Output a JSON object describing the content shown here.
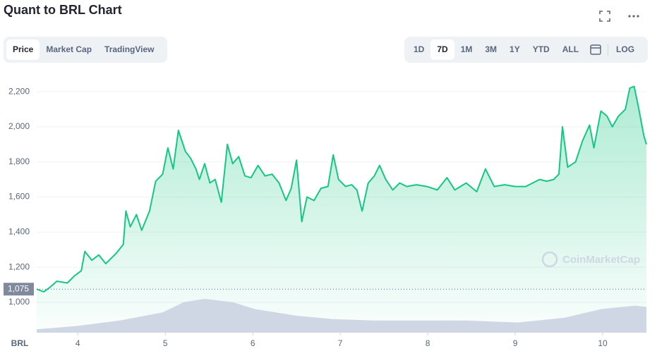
{
  "header": {
    "title": "Quant to BRL Chart"
  },
  "tabs": [
    "Price",
    "Market Cap",
    "TradingView"
  ],
  "ranges": [
    "1D",
    "7D",
    "1M",
    "3M",
    "1Y",
    "YTD",
    "ALL"
  ],
  "log": "LOG",
  "watermark": "CoinMarketCap",
  "chart_data": {
    "type": "line",
    "xlabel": "BRL",
    "xlim": [
      3.53,
      10.5
    ],
    "xticks": [
      4,
      5,
      6,
      7,
      8,
      9,
      10
    ],
    "ylim": [
      827,
      2369
    ],
    "yticks": [
      {
        "value": 1000,
        "label": "1,000"
      },
      {
        "value": 1200,
        "label": "1,200"
      },
      {
        "value": 1400,
        "label": "1,400"
      },
      {
        "value": 1600,
        "label": "1,600"
      },
      {
        "value": 1800,
        "label": "1,800"
      },
      {
        "value": 2000,
        "label": "2,000"
      },
      {
        "value": 2200,
        "label": "2,200"
      }
    ],
    "y2lim": [
      0,
      400
    ],
    "grid": true,
    "reference": {
      "value": 1075,
      "label": "1,075"
    },
    "series": [
      {
        "color": "#16c784",
        "x": [
          3.53,
          3.61,
          3.68,
          3.76,
          3.88,
          3.96,
          4.04,
          4.08,
          4.16,
          4.24,
          4.32,
          4.44,
          4.52,
          4.55,
          4.6,
          4.67,
          4.73,
          4.82,
          4.89,
          4.97,
          5.03,
          5.09,
          5.15,
          5.23,
          5.29,
          5.35,
          5.39,
          5.45,
          5.51,
          5.57,
          5.64,
          5.71,
          5.77,
          5.84,
          5.91,
          5.98,
          6.06,
          6.14,
          6.22,
          6.3,
          6.38,
          6.44,
          6.5,
          6.56,
          6.62,
          6.7,
          6.78,
          6.86,
          6.92,
          6.98,
          7.06,
          7.13,
          7.19,
          7.25,
          7.32,
          7.39,
          7.45,
          7.52,
          7.6,
          7.68,
          7.76,
          7.87,
          7.99,
          8.11,
          8.22,
          8.31,
          8.44,
          8.56,
          8.66,
          8.76,
          8.88,
          9.0,
          9.12,
          9.2,
          9.28,
          9.36,
          9.44,
          9.5,
          9.54,
          9.6,
          9.69,
          9.77,
          9.85,
          9.9,
          9.98,
          10.05,
          10.11,
          10.18,
          10.26,
          10.31,
          10.36,
          10.41,
          10.47,
          10.5
        ],
        "values": [
          1075,
          1060,
          1085,
          1120,
          1110,
          1150,
          1180,
          1290,
          1240,
          1270,
          1220,
          1280,
          1330,
          1520,
          1430,
          1500,
          1410,
          1520,
          1690,
          1730,
          1880,
          1760,
          1980,
          1860,
          1820,
          1760,
          1700,
          1790,
          1680,
          1700,
          1570,
          1900,
          1790,
          1830,
          1720,
          1710,
          1780,
          1720,
          1730,
          1680,
          1580,
          1650,
          1810,
          1460,
          1600,
          1580,
          1650,
          1660,
          1840,
          1700,
          1660,
          1670,
          1640,
          1520,
          1680,
          1720,
          1780,
          1700,
          1640,
          1680,
          1660,
          1670,
          1660,
          1640,
          1710,
          1640,
          1680,
          1630,
          1760,
          1660,
          1670,
          1660,
          1660,
          1680,
          1700,
          1690,
          1700,
          1730,
          2000,
          1770,
          1800,
          1920,
          2010,
          1880,
          2090,
          2060,
          2000,
          2060,
          2100,
          2220,
          2230,
          2110,
          1950,
          1900
        ]
      },
      {
        "color": "#cfd6e4",
        "axis": "y2",
        "x": [
          3.53,
          4.0,
          4.48,
          4.97,
          5.21,
          5.45,
          5.77,
          6.02,
          6.5,
          6.92,
          7.39,
          7.9,
          8.44,
          9.03,
          9.56,
          9.99,
          10.37,
          10.5
        ],
        "values": [
          5,
          10,
          18,
          30,
          45,
          50,
          45,
          35,
          25,
          20,
          18,
          18,
          18,
          15,
          22,
          35,
          40,
          38
        ]
      }
    ]
  }
}
